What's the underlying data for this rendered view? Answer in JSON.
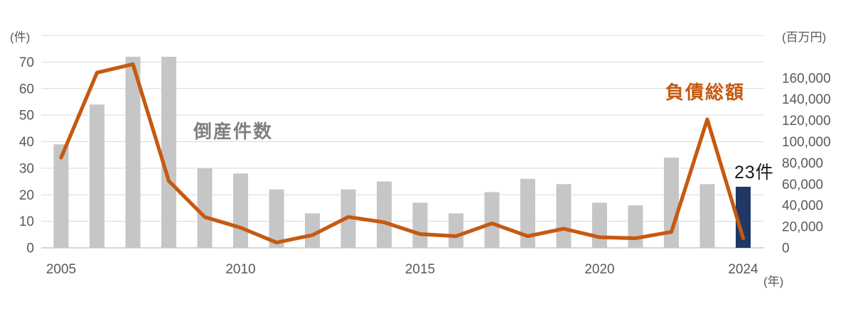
{
  "chart_data": {
    "type": "combo",
    "title": "",
    "categories": [
      "2005",
      "2006",
      "2007",
      "2008",
      "2009",
      "2010",
      "2011",
      "2012",
      "2013",
      "2014",
      "2015",
      "2016",
      "2017",
      "2018",
      "2019",
      "2020",
      "2021",
      "2022",
      "2023",
      "2024"
    ],
    "series": [
      {
        "name": "倒産件数",
        "type": "bar",
        "axis": "left",
        "color": "#c6c6c6",
        "highlight_index": 19,
        "highlight_color": "#1f3864",
        "values": [
          39,
          54,
          72,
          72,
          30,
          28,
          22,
          13,
          22,
          25,
          17,
          13,
          21,
          26,
          24,
          17,
          16,
          34,
          24,
          23
        ]
      },
      {
        "name": "負債総額",
        "type": "line",
        "axis": "right",
        "color": "#c55a11",
        "values": [
          85000,
          165000,
          173000,
          63000,
          29000,
          19000,
          5000,
          12000,
          29000,
          24000,
          13000,
          11000,
          23000,
          11000,
          18000,
          10000,
          9000,
          15000,
          121000,
          9000
        ]
      }
    ],
    "left_axis": {
      "unit_label": "(件)",
      "min": 0,
      "max": 80,
      "tick_step": 10,
      "tick_labels": [
        "0",
        "10",
        "20",
        "30",
        "40",
        "50",
        "60",
        "70"
      ]
    },
    "right_axis": {
      "unit_label": "(百万円)",
      "min": 0,
      "max": 200000,
      "tick_step": 20000,
      "tick_labels": [
        "0",
        "20,000",
        "40,000",
        "60,000",
        "80,000",
        "100,000",
        "120,000",
        "140,000",
        "160,000"
      ]
    },
    "x_axis": {
      "unit_label": "(年)",
      "tick_labels": [
        "2005",
        "2010",
        "2015",
        "2020",
        "2024"
      ],
      "tick_indices": [
        0,
        5,
        10,
        15,
        19
      ]
    },
    "annotations": [
      {
        "text": "23件",
        "target": "2024"
      }
    ],
    "grid": true,
    "legend_position": "inline-labels",
    "colors": {
      "gridline": "#d9d9d9",
      "axis_line": "#bfbfbf",
      "tick_text": "#595959"
    }
  }
}
